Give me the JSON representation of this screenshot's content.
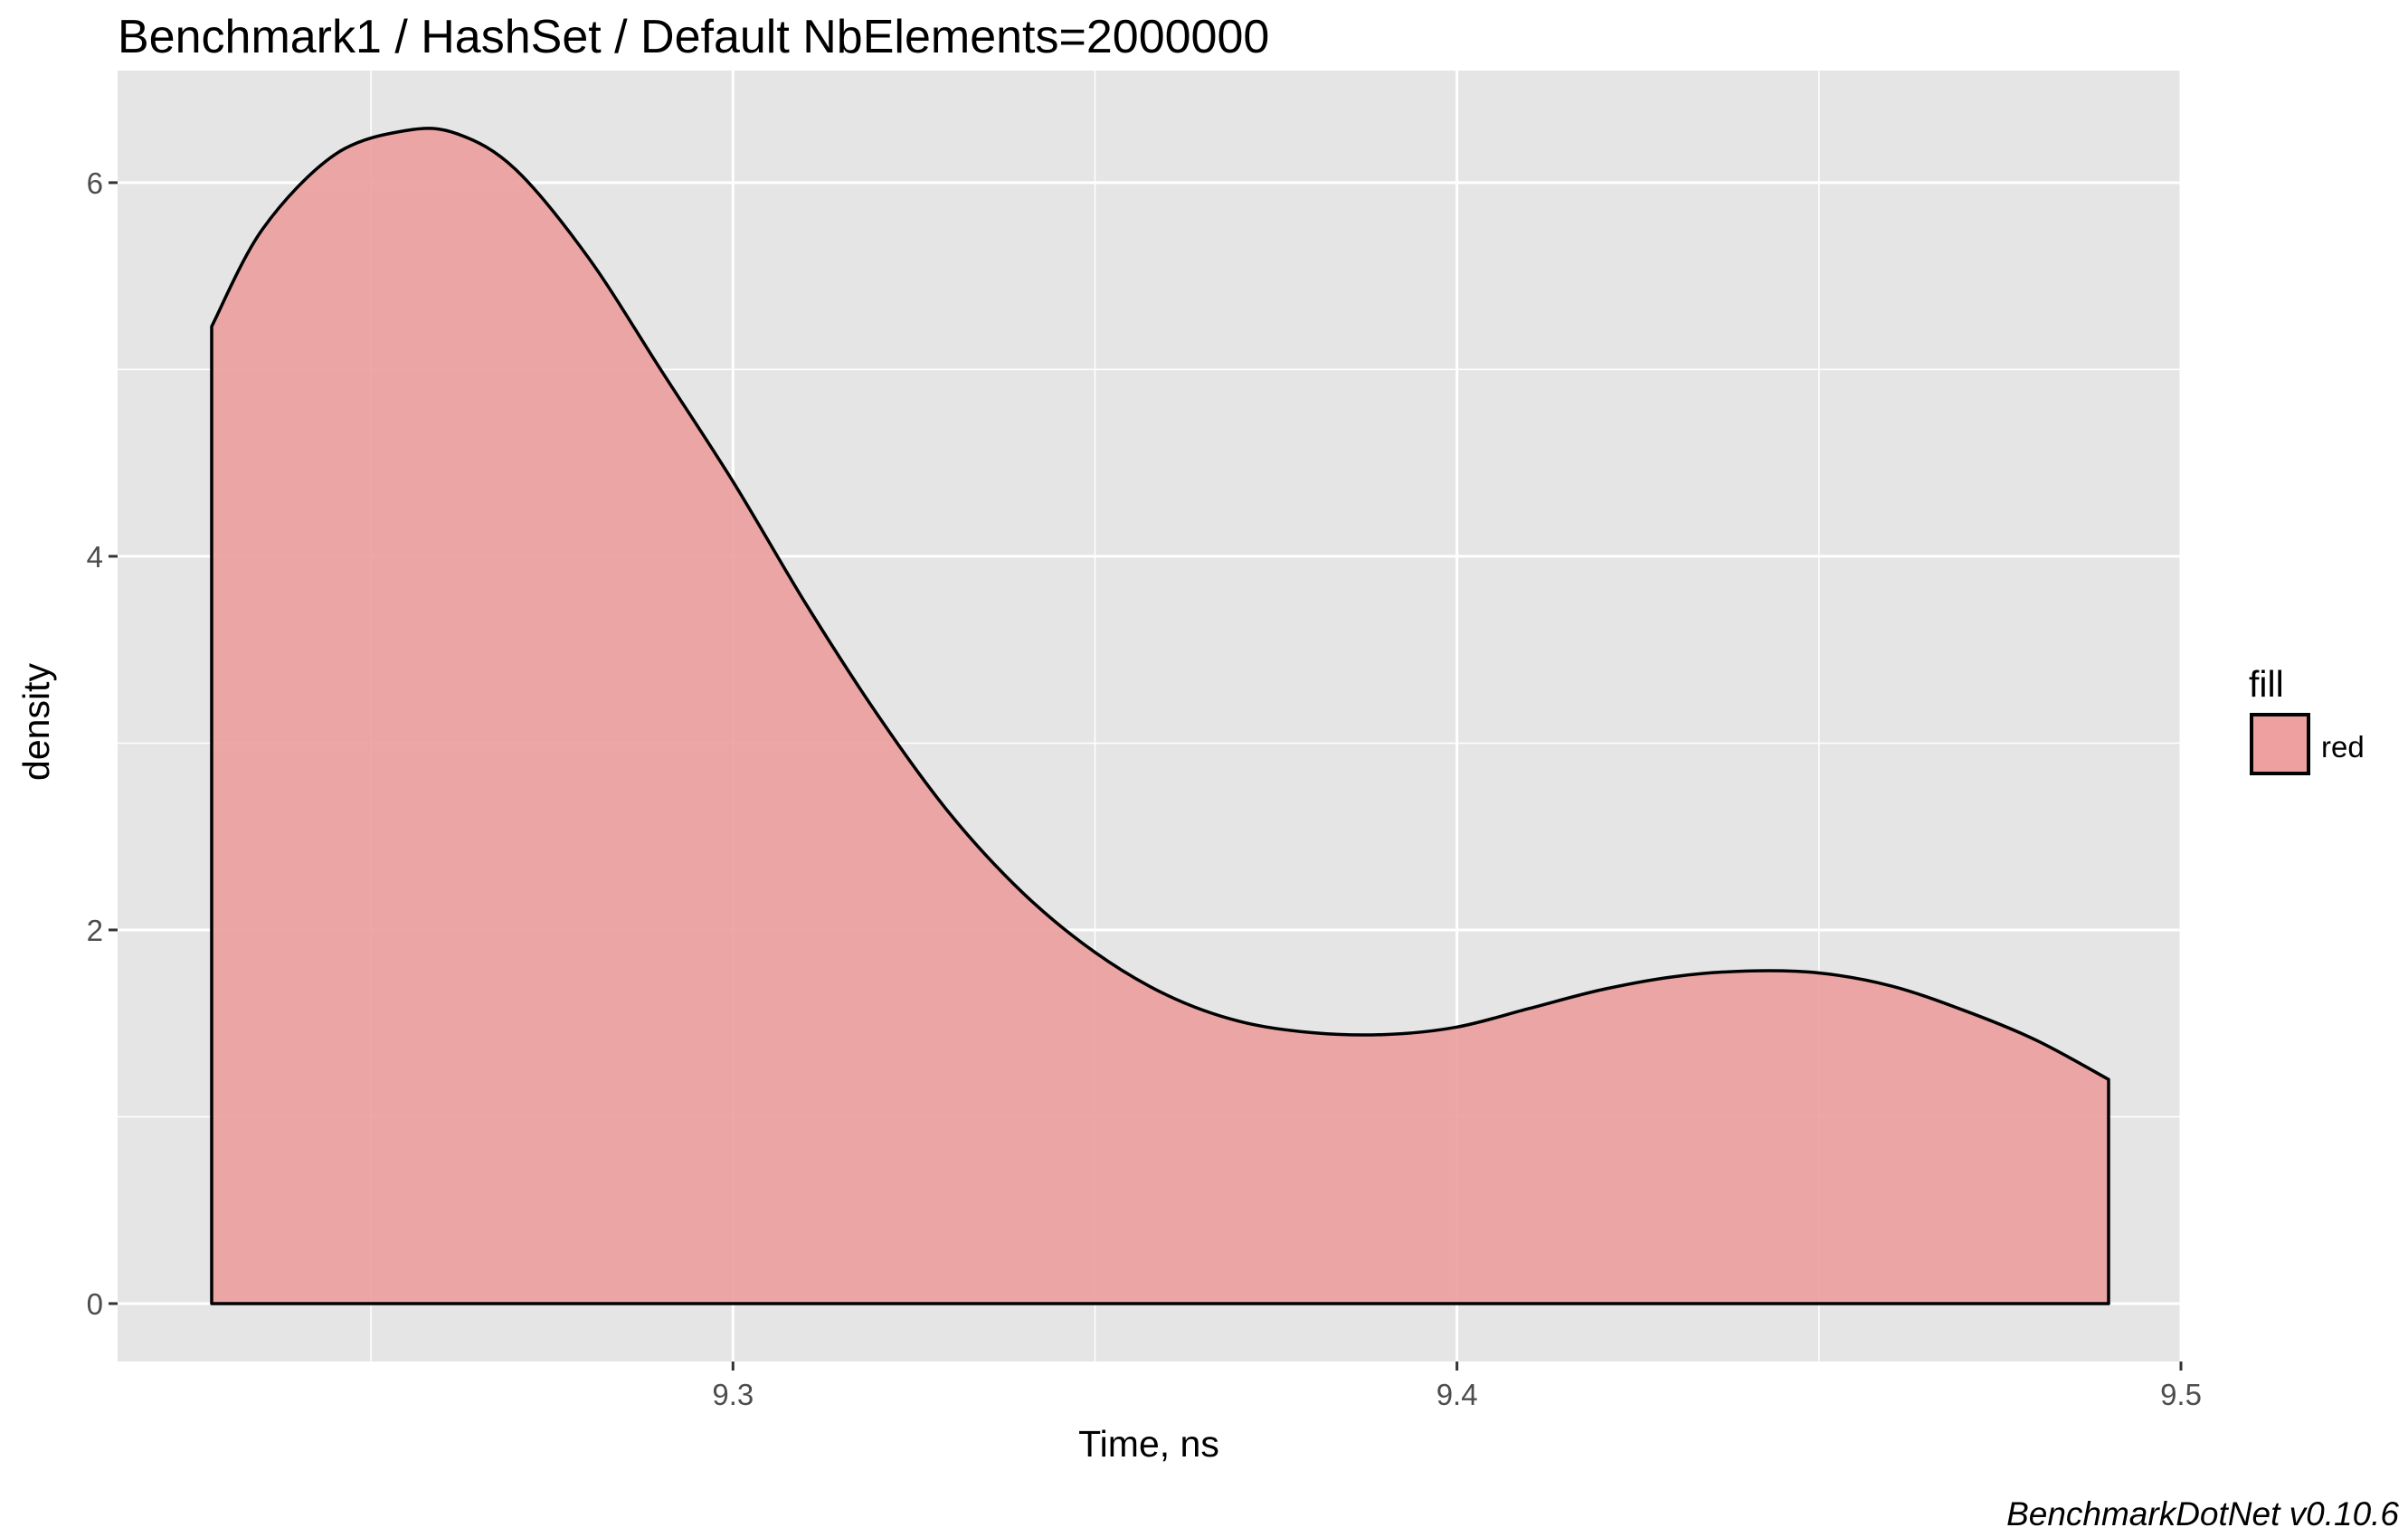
{
  "chart_data": {
    "type": "area",
    "title": "Benchmark1 / HashSet / Default NbElements=2000000",
    "xlabel": "Time, ns",
    "ylabel": "density",
    "caption": "BenchmarkDotNet v0.10.6",
    "xlim": [
      9.215,
      9.5
    ],
    "ylim": [
      -0.31,
      6.6
    ],
    "x_ticks": [
      9.3,
      9.4,
      9.5
    ],
    "x_tick_labels": [
      "9.3",
      "9.4",
      "9.5"
    ],
    "y_ticks": [
      0,
      2,
      4,
      6
    ],
    "y_tick_labels": [
      "0",
      "2",
      "4",
      "6"
    ],
    "grid": true,
    "legend": {
      "title": "fill",
      "position": "right",
      "entries": [
        {
          "label": "red",
          "color": "#eda09f"
        }
      ]
    },
    "colors": {
      "fill": "#eda09f",
      "stroke": "#000000",
      "panel": "#e5e5e5",
      "grid": "#ffffff"
    },
    "series": [
      {
        "name": "red",
        "x": [
          9.228,
          9.235,
          9.245,
          9.255,
          9.262,
          9.27,
          9.28,
          9.29,
          9.3,
          9.31,
          9.32,
          9.33,
          9.34,
          9.35,
          9.36,
          9.37,
          9.38,
          9.39,
          9.4,
          9.41,
          9.42,
          9.43,
          9.44,
          9.45,
          9.46,
          9.47,
          9.48,
          9.49
        ],
        "values": [
          5.23,
          5.75,
          6.15,
          6.28,
          6.26,
          6.07,
          5.6,
          5.0,
          4.4,
          3.75,
          3.15,
          2.62,
          2.2,
          1.88,
          1.65,
          1.51,
          1.45,
          1.44,
          1.48,
          1.58,
          1.68,
          1.75,
          1.78,
          1.77,
          1.7,
          1.57,
          1.41,
          1.2
        ]
      }
    ]
  }
}
